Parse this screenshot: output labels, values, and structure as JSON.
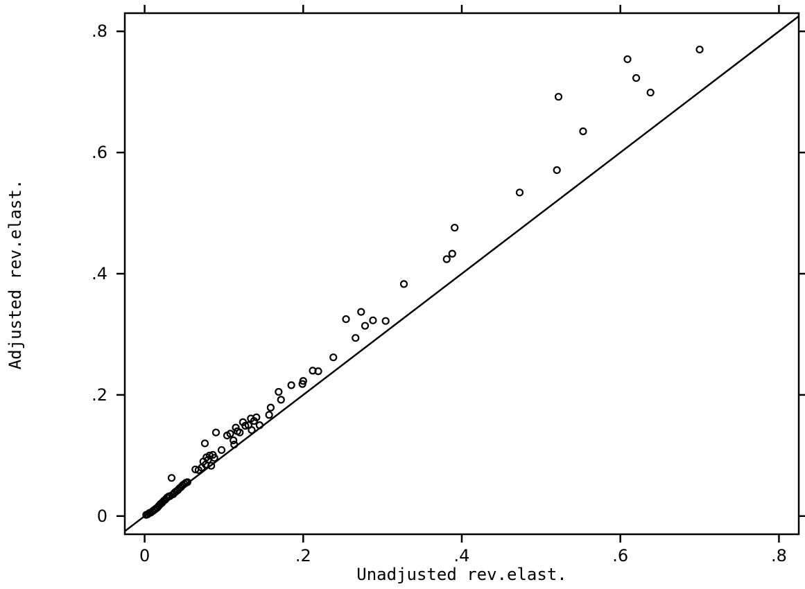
{
  "chart_data": {
    "type": "scatter",
    "title": "",
    "xlabel": "Unadjusted rev.elast.",
    "ylabel": "Adjusted rev.elast.",
    "xlim": [
      -0.025,
      0.825
    ],
    "ylim": [
      -0.03,
      0.83
    ],
    "x_ticks": [
      0,
      0.2,
      0.4,
      0.6,
      0.8
    ],
    "x_tick_labels": [
      "0",
      ".2",
      ".4",
      ".6",
      ".8"
    ],
    "y_ticks": [
      0,
      0.2,
      0.4,
      0.6,
      0.8
    ],
    "y_tick_labels": [
      "0",
      ".2",
      ".4",
      ".6",
      ".8"
    ],
    "grid": false,
    "reference_line": "y = x",
    "marker": "hollow-circle",
    "colors": {
      "ink": "#000000",
      "background": "#ffffff"
    },
    "points": [
      [
        0.002,
        0.002
      ],
      [
        0.004,
        0.003
      ],
      [
        0.006,
        0.005
      ],
      [
        0.008,
        0.006
      ],
      [
        0.01,
        0.008
      ],
      [
        0.012,
        0.01
      ],
      [
        0.014,
        0.012
      ],
      [
        0.016,
        0.014
      ],
      [
        0.018,
        0.017
      ],
      [
        0.02,
        0.02
      ],
      [
        0.022,
        0.022
      ],
      [
        0.024,
        0.025
      ],
      [
        0.026,
        0.027
      ],
      [
        0.028,
        0.03
      ],
      [
        0.03,
        0.032
      ],
      [
        0.032,
        0.033
      ],
      [
        0.034,
        0.063
      ],
      [
        0.036,
        0.036
      ],
      [
        0.038,
        0.039
      ],
      [
        0.04,
        0.041
      ],
      [
        0.042,
        0.043
      ],
      [
        0.044,
        0.046
      ],
      [
        0.046,
        0.048
      ],
      [
        0.048,
        0.051
      ],
      [
        0.05,
        0.053
      ],
      [
        0.052,
        0.055
      ],
      [
        0.054,
        0.056
      ],
      [
        0.064,
        0.077
      ],
      [
        0.068,
        0.076
      ],
      [
        0.072,
        0.08
      ],
      [
        0.074,
        0.09
      ],
      [
        0.076,
        0.12
      ],
      [
        0.077,
        0.085
      ],
      [
        0.078,
        0.097
      ],
      [
        0.08,
        0.093
      ],
      [
        0.082,
        0.1
      ],
      [
        0.084,
        0.083
      ],
      [
        0.086,
        0.101
      ],
      [
        0.088,
        0.096
      ],
      [
        0.09,
        0.138
      ],
      [
        0.097,
        0.109
      ],
      [
        0.104,
        0.133
      ],
      [
        0.108,
        0.136
      ],
      [
        0.112,
        0.125
      ],
      [
        0.113,
        0.118
      ],
      [
        0.115,
        0.146
      ],
      [
        0.117,
        0.14
      ],
      [
        0.12,
        0.138
      ],
      [
        0.124,
        0.155
      ],
      [
        0.127,
        0.149
      ],
      [
        0.131,
        0.15
      ],
      [
        0.134,
        0.161
      ],
      [
        0.135,
        0.142
      ],
      [
        0.138,
        0.157
      ],
      [
        0.141,
        0.163
      ],
      [
        0.145,
        0.15
      ],
      [
        0.157,
        0.167
      ],
      [
        0.159,
        0.179
      ],
      [
        0.169,
        0.205
      ],
      [
        0.172,
        0.192
      ],
      [
        0.185,
        0.216
      ],
      [
        0.199,
        0.218
      ],
      [
        0.2,
        0.223
      ],
      [
        0.212,
        0.24
      ],
      [
        0.219,
        0.239
      ],
      [
        0.238,
        0.262
      ],
      [
        0.254,
        0.325
      ],
      [
        0.266,
        0.294
      ],
      [
        0.273,
        0.337
      ],
      [
        0.278,
        0.314
      ],
      [
        0.288,
        0.323
      ],
      [
        0.304,
        0.322
      ],
      [
        0.327,
        0.383
      ],
      [
        0.381,
        0.424
      ],
      [
        0.388,
        0.433
      ],
      [
        0.391,
        0.476
      ],
      [
        0.473,
        0.534
      ],
      [
        0.52,
        0.571
      ],
      [
        0.522,
        0.692
      ],
      [
        0.553,
        0.635
      ],
      [
        0.609,
        0.754
      ],
      [
        0.62,
        0.723
      ],
      [
        0.638,
        0.699
      ],
      [
        0.7,
        0.77
      ]
    ]
  }
}
